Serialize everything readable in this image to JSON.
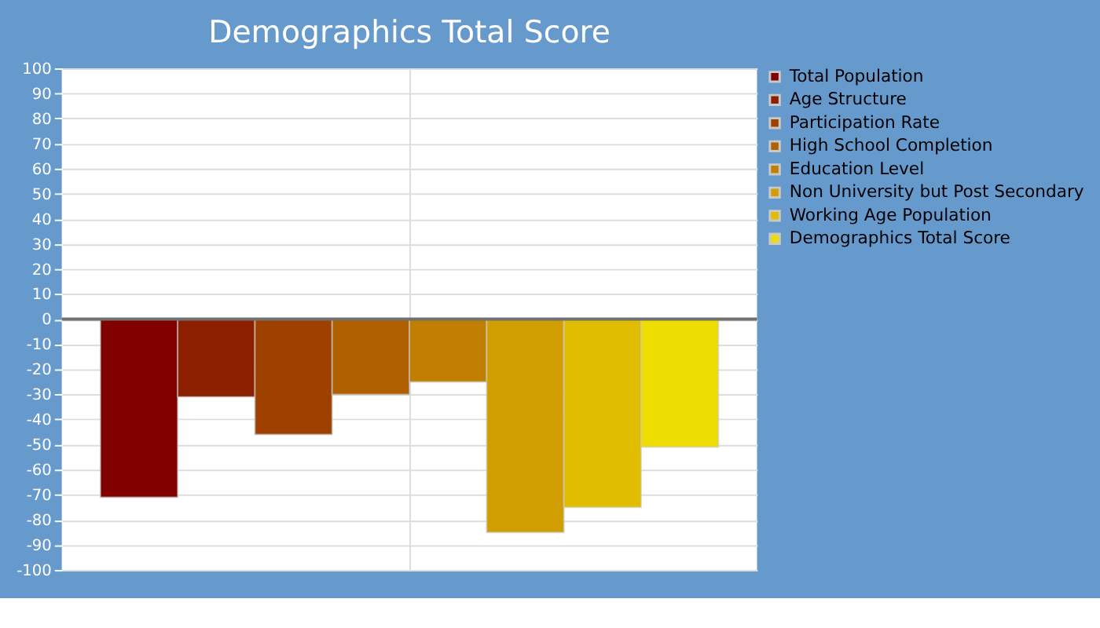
{
  "chart_data": {
    "type": "bar",
    "title": "Demographics Total Score",
    "categories": [
      null
    ],
    "series": [
      {
        "name": "Total Population",
        "color": "#800000",
        "values": [
          -71
        ]
      },
      {
        "name": "Age Structure",
        "color": "#8c1f00",
        "values": [
          -31
        ]
      },
      {
        "name": "Participation Rate",
        "color": "#9e4000",
        "values": [
          -46
        ]
      },
      {
        "name": "High School Completion",
        "color": "#b06000",
        "values": [
          -30
        ]
      },
      {
        "name": "Education Level",
        "color": "#c07f00",
        "values": [
          -25
        ]
      },
      {
        "name": "Non University but Post Secondary",
        "color": "#d09e00",
        "values": [
          -85
        ]
      },
      {
        "name": "Working Age Population",
        "color": "#e0bd00",
        "values": [
          -75
        ]
      },
      {
        "name": "Demographics Total Score",
        "color": "#eedd00",
        "values": [
          -51
        ]
      }
    ],
    "ylim": [
      -100,
      100
    ],
    "yticks": [
      -100,
      -90,
      -80,
      -70,
      -60,
      -50,
      -40,
      -30,
      -20,
      -10,
      0,
      10,
      20,
      30,
      40,
      50,
      60,
      70,
      80,
      90,
      100
    ],
    "ref_lines": [
      {
        "axis": "y",
        "value": 0,
        "color": "#707070"
      }
    ],
    "grid": true,
    "legend": "right"
  }
}
